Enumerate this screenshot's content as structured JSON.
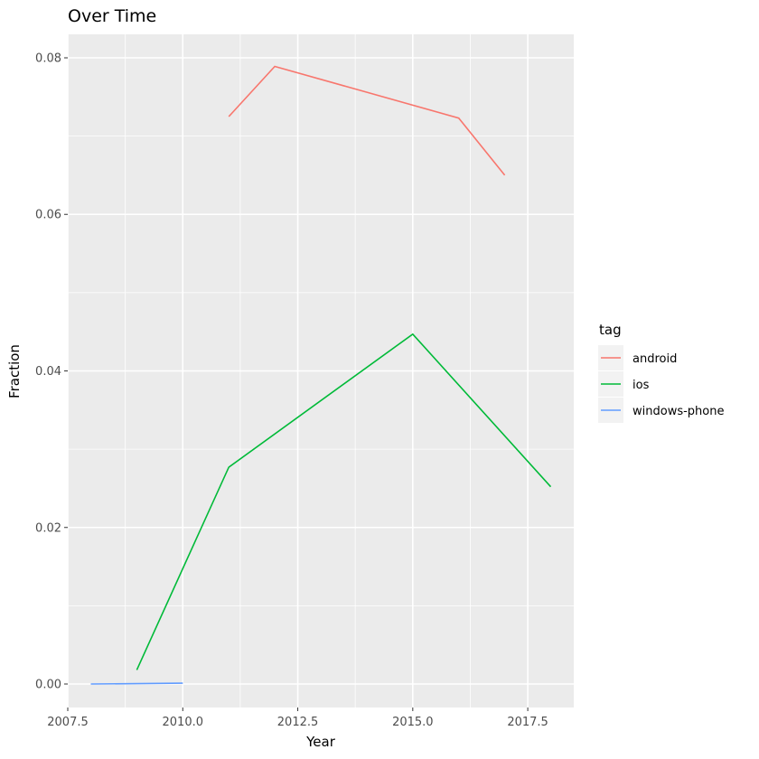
{
  "chart_data": {
    "type": "line",
    "title": "Over Time",
    "xlabel": "Year",
    "ylabel": "Fraction",
    "xlim": [
      2007.5,
      2018.5
    ],
    "ylim": [
      -0.003,
      0.083
    ],
    "x_ticks": [
      2007.5,
      2010.0,
      2012.5,
      2015.0,
      2017.5
    ],
    "x_tick_labels": [
      "2007.5",
      "2010.0",
      "2012.5",
      "2015.0",
      "2017.5"
    ],
    "y_ticks": [
      0.0,
      0.02,
      0.04,
      0.06,
      0.08
    ],
    "y_tick_labels": [
      "0.00",
      "0.02",
      "0.04",
      "0.06",
      "0.08"
    ],
    "grid": true,
    "legend_title": "tag",
    "legend_position": "right",
    "series": [
      {
        "name": "android",
        "color": "#F8766D",
        "x": [
          2011,
          2012,
          2016,
          2017
        ],
        "y": [
          0.0725,
          0.0789,
          0.0723,
          0.065
        ]
      },
      {
        "name": "ios",
        "color": "#00BA38",
        "x": [
          2009,
          2011,
          2015,
          2018
        ],
        "y": [
          0.0018,
          0.0277,
          0.0447,
          0.0252
        ]
      },
      {
        "name": "windows-phone",
        "color": "#619CFF",
        "x": [
          2008,
          2010
        ],
        "y": [
          0.0,
          0.0001
        ]
      }
    ]
  }
}
